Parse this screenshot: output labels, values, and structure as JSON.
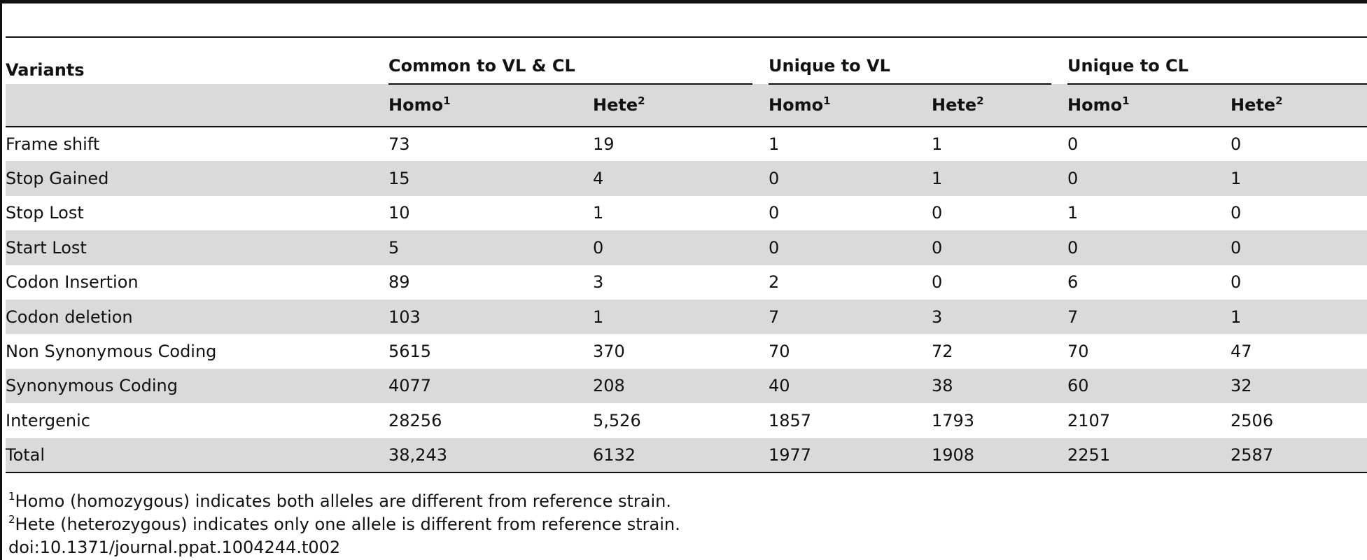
{
  "table": {
    "corner_label": "Variants",
    "groups": [
      "Common to VL & CL",
      "Unique to VL",
      "Unique to CL"
    ],
    "subheaders": [
      {
        "label": "Homo",
        "sup": "1"
      },
      {
        "label": "Hete",
        "sup": "2"
      },
      {
        "label": "Homo",
        "sup": "1"
      },
      {
        "label": "Hete",
        "sup": "2"
      },
      {
        "label": "Homo",
        "sup": "1"
      },
      {
        "label": "Hete",
        "sup": "2"
      }
    ],
    "rows": [
      {
        "label": "Frame shift",
        "values": [
          "73",
          "19",
          "1",
          "1",
          "0",
          "0"
        ]
      },
      {
        "label": "Stop Gained",
        "values": [
          "15",
          "4",
          "0",
          "1",
          "0",
          "1"
        ]
      },
      {
        "label": "Stop Lost",
        "values": [
          "10",
          "1",
          "0",
          "0",
          "1",
          "0"
        ]
      },
      {
        "label": "Start Lost",
        "values": [
          "5",
          "0",
          "0",
          "0",
          "0",
          "0"
        ]
      },
      {
        "label": "Codon Insertion",
        "values": [
          "89",
          "3",
          "2",
          "0",
          "6",
          "0"
        ]
      },
      {
        "label": "Codon deletion",
        "values": [
          "103",
          "1",
          "7",
          "3",
          "7",
          "1"
        ]
      },
      {
        "label": "Non Synonymous Coding",
        "values": [
          "5615",
          "370",
          "70",
          "72",
          "70",
          "47"
        ]
      },
      {
        "label": "Synonymous Coding",
        "values": [
          "4077",
          "208",
          "40",
          "38",
          "60",
          "32"
        ]
      },
      {
        "label": "Intergenic",
        "values": [
          "28256",
          "5,526",
          "1857",
          "1793",
          "2107",
          "2506"
        ]
      },
      {
        "label": "Total",
        "values": [
          "38,243",
          "6132",
          "1977",
          "1908",
          "2251",
          "2587"
        ]
      }
    ]
  },
  "footnotes": [
    {
      "sup": "1",
      "text": "Homo (homozygous) indicates both alleles are different from reference strain."
    },
    {
      "sup": "2",
      "text": "Hete (heterozygous) indicates only one allele is different from reference strain."
    }
  ],
  "doi": "doi:10.1371/journal.ppat.1004244.t002"
}
